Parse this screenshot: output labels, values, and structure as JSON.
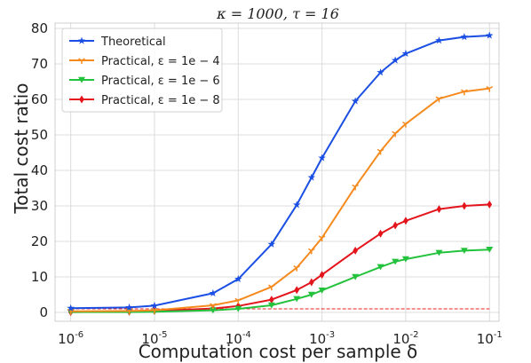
{
  "chart_data": {
    "type": "line",
    "title": "κ = 1000, τ = 16",
    "xlabel": "Computation cost per sample δ",
    "ylabel": "Total cost ratio",
    "xscale": "log",
    "xlim": [
      6.5e-07,
      0.13
    ],
    "ylim": [
      -2.5,
      81.5
    ],
    "xticks": [
      1e-06,
      1e-05,
      0.0001,
      0.001,
      0.01,
      0.1
    ],
    "xtick_labels": [
      "10^-6",
      "10^-5",
      "10^-4",
      "10^-3",
      "10^-2",
      "10^-1"
    ],
    "yticks": [
      0,
      10,
      20,
      30,
      40,
      50,
      60,
      70,
      80
    ],
    "ytick_labels": [
      "0",
      "10",
      "20",
      "30",
      "40",
      "50",
      "60",
      "70",
      "80"
    ],
    "grid": true,
    "legend_position": "top-left",
    "reference_line": {
      "y": 1,
      "color": "#e8201f",
      "style": "dashed"
    },
    "x": [
      1e-06,
      5e-06,
      1e-05,
      5e-05,
      0.0001,
      0.00025,
      0.0005,
      0.00075,
      0.001,
      0.0025,
      0.005,
      0.0075,
      0.01,
      0.025,
      0.05,
      0.1
    ],
    "series": [
      {
        "name": "Theoretical",
        "color": "#1b4fe4",
        "marker": "star",
        "values": [
          1.2,
          1.4,
          1.9,
          5.4,
          9.4,
          19.2,
          30.3,
          38.0,
          43.5,
          59.5,
          67.6,
          71.0,
          72.9,
          76.6,
          77.6,
          78.0
        ]
      },
      {
        "name": "Practical, ε = 1e − 4",
        "color": "#f58a1f",
        "marker": "tri-down",
        "values": [
          0.3,
          0.4,
          0.6,
          2.0,
          3.4,
          7.2,
          12.6,
          17.4,
          21.0,
          35.4,
          45.4,
          50.4,
          53.1,
          60.2,
          62.2,
          63.1
        ]
      },
      {
        "name": "Practical, ε = 1e − 6",
        "color": "#23c23c",
        "marker": "triangle-down",
        "values": [
          0.1,
          0.1,
          0.2,
          0.6,
          1.0,
          2.0,
          3.8,
          5.0,
          6.2,
          10.0,
          12.8,
          14.3,
          15.0,
          16.8,
          17.4,
          17.7
        ]
      },
      {
        "name": "Practical, ε = 1e − 8",
        "color": "#e4141c",
        "marker": "diamond",
        "values": [
          0.1,
          0.2,
          0.4,
          1.1,
          1.8,
          3.6,
          6.3,
          8.5,
          10.6,
          17.4,
          22.2,
          24.5,
          25.8,
          29.1,
          30.0,
          30.4
        ]
      }
    ]
  }
}
